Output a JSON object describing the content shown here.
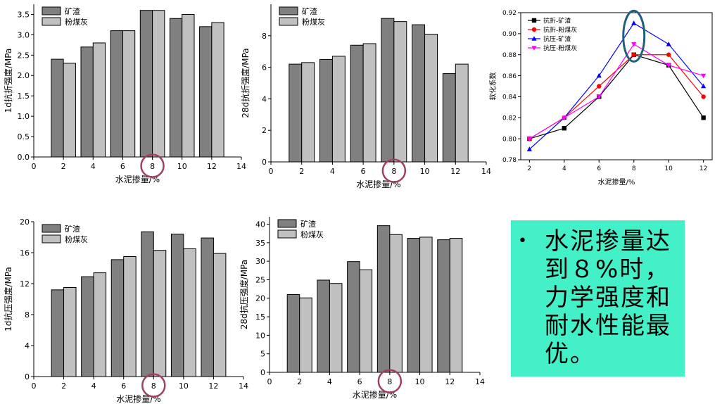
{
  "charts": [
    {
      "type": "bar",
      "x": [
        2,
        4,
        6,
        8,
        10,
        12
      ],
      "series": [
        {
          "name": "矿渣",
          "values": [
            2.4,
            2.7,
            3.1,
            3.6,
            3.4,
            3.2
          ],
          "color": "#808080"
        },
        {
          "name": "粉煤灰",
          "values": [
            2.3,
            2.8,
            3.1,
            3.6,
            3.5,
            3.3
          ],
          "color": "#c0c0c0"
        }
      ],
      "xlabel": "水泥掺量/%",
      "ylabel": "1d抗折强度/MPa",
      "xlim": [
        0,
        14
      ],
      "ylim": [
        0,
        3.75
      ],
      "xticks": [
        0,
        2,
        4,
        6,
        8,
        10,
        12,
        14
      ],
      "yticks": [
        0.0,
        0.5,
        1.0,
        1.5,
        2.0,
        2.5,
        3.0,
        3.5
      ],
      "ytick_labels": [
        "0.0",
        "0.5",
        "1.0",
        "1.5",
        "2.0",
        "2.5",
        "3.0",
        "3.5"
      ],
      "legend": "top-left",
      "highlight_x": 8
    },
    {
      "type": "bar",
      "x": [
        2,
        4,
        6,
        8,
        10,
        12
      ],
      "series": [
        {
          "name": "矿渣",
          "values": [
            6.2,
            6.5,
            7.4,
            9.1,
            8.7,
            5.6
          ],
          "color": "#808080"
        },
        {
          "name": "粉煤灰",
          "values": [
            6.3,
            6.7,
            7.5,
            8.9,
            8.1,
            6.2
          ],
          "color": "#c0c0c0"
        }
      ],
      "xlabel": "水泥掺量/%",
      "ylabel": "28d抗折强度/MPa",
      "xlim": [
        0,
        14
      ],
      "ylim": [
        0,
        10
      ],
      "xticks": [
        0,
        2,
        4,
        6,
        8,
        10,
        12,
        14
      ],
      "yticks": [
        0,
        2,
        4,
        6,
        8
      ],
      "ytick_labels": [
        "0",
        "2",
        "4",
        "6",
        "8"
      ],
      "legend": "top-left",
      "highlight_x": 8
    },
    {
      "type": "line",
      "x": [
        2,
        4,
        6,
        8,
        10,
        12
      ],
      "series": [
        {
          "name": "抗折-矿渣",
          "values": [
            0.8,
            0.81,
            0.84,
            0.88,
            0.87,
            0.82
          ],
          "color": "#000000",
          "marker": "square"
        },
        {
          "name": "抗折-粉煤灰",
          "values": [
            0.8,
            0.82,
            0.85,
            0.88,
            0.88,
            0.84
          ],
          "color": "#ff0000",
          "marker": "circle"
        },
        {
          "name": "抗压-矿渣",
          "values": [
            0.79,
            0.82,
            0.86,
            0.91,
            0.89,
            0.85
          ],
          "color": "#0000ff",
          "marker": "triangle-up"
        },
        {
          "name": "抗压-粉煤灰",
          "values": [
            0.8,
            0.82,
            0.84,
            0.89,
            0.87,
            0.86
          ],
          "color": "#ff00ff",
          "marker": "triangle-down"
        }
      ],
      "xlabel": "水泥掺量/%",
      "ylabel": "软化系数",
      "xlim": [
        1.5,
        12.5
      ],
      "ylim": [
        0.78,
        0.92
      ],
      "xticks": [
        2,
        4,
        6,
        8,
        10,
        12
      ],
      "yticks": [
        0.78,
        0.8,
        0.82,
        0.84,
        0.86,
        0.88,
        0.9,
        0.92
      ],
      "ytick_labels": [
        "0.78",
        "0.80",
        "0.82",
        "0.84",
        "0.86",
        "0.88",
        "0.90",
        "0.92"
      ],
      "legend": "top-left",
      "highlight_x": 8,
      "highlight_color": "#1f5f7a"
    },
    {
      "type": "bar",
      "x": [
        2,
        4,
        6,
        8,
        10,
        12
      ],
      "series": [
        {
          "name": "矿渣",
          "values": [
            11.2,
            12.9,
            15.1,
            18.7,
            18.4,
            17.9
          ],
          "color": "#808080"
        },
        {
          "name": "粉煤灰",
          "values": [
            11.5,
            13.4,
            15.5,
            16.3,
            16.5,
            15.9
          ],
          "color": "#c0c0c0"
        }
      ],
      "xlabel": "水泥掺量/%",
      "ylabel": "1d抗压强度/MPa",
      "xlim": [
        0,
        14
      ],
      "ylim": [
        0,
        20
      ],
      "xticks": [
        0,
        2,
        4,
        6,
        8,
        10,
        12,
        14
      ],
      "yticks": [
        0,
        4,
        8,
        12,
        16,
        20
      ],
      "ytick_labels": [
        "0",
        "4",
        "8",
        "12",
        "16",
        "20"
      ],
      "legend": "top-left",
      "highlight_x": 8
    },
    {
      "type": "bar",
      "x": [
        2,
        4,
        6,
        8,
        10,
        12
      ],
      "series": [
        {
          "name": "矿渣",
          "values": [
            21.0,
            24.9,
            29.9,
            39.6,
            36.2,
            35.8
          ],
          "color": "#808080"
        },
        {
          "name": "粉煤灰",
          "values": [
            20.1,
            24.0,
            27.7,
            37.2,
            36.5,
            36.2
          ],
          "color": "#c0c0c0"
        }
      ],
      "xlabel": "水泥掺量/%",
      "ylabel": "28d抗压强度/MPa",
      "xlim": [
        0,
        14
      ],
      "ylim": [
        0,
        42
      ],
      "xticks": [
        0,
        2,
        4,
        6,
        8,
        10,
        12,
        14
      ],
      "yticks": [
        0,
        5,
        10,
        15,
        20,
        25,
        30,
        35,
        40
      ],
      "ytick_labels": [
        "0",
        "5",
        "10",
        "15",
        "20",
        "25",
        "30",
        "35",
        "40"
      ],
      "legend": "top-left",
      "highlight_x": 8
    }
  ],
  "colors": {
    "highlight_circle": "#a0405a",
    "callout_bg": "#44f0c8"
  },
  "callout": {
    "bullet": "•",
    "text": "水泥掺量达到８%时，力学强度和耐水性能最优。"
  }
}
